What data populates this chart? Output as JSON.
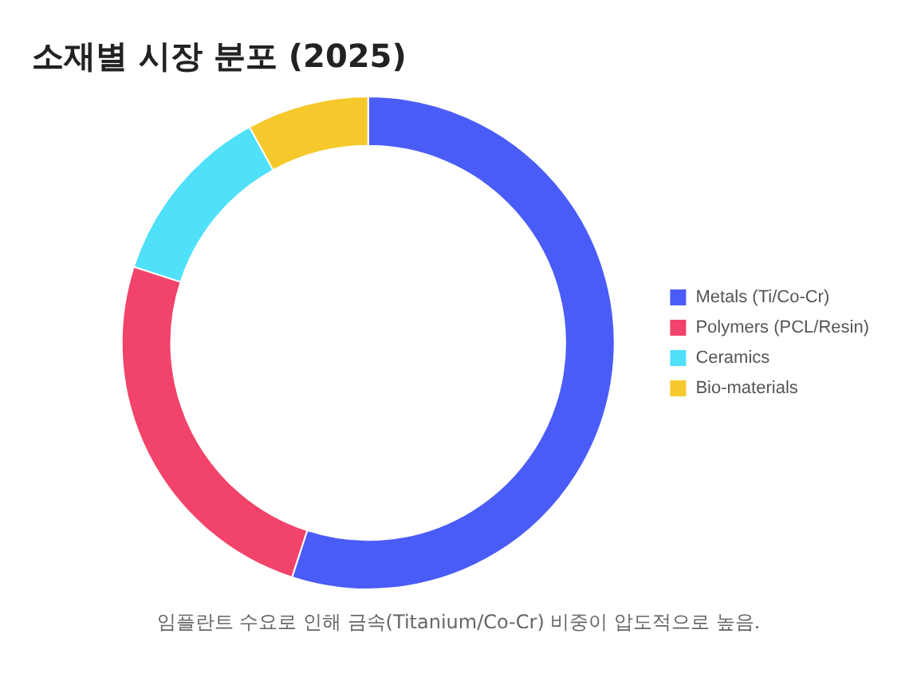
{
  "chart_data": {
    "type": "donut",
    "title": "소재별 시장 분포 (2025)",
    "categories": [
      "Metals (Ti/Co-Cr)",
      "Polymers (PCL/Resin)",
      "Ceramics",
      "Bio-materials"
    ],
    "values": [
      55,
      25,
      12,
      8
    ],
    "colors": [
      "#4a5cf8",
      "#f2436b",
      "#4fe0fa",
      "#f5c92b"
    ],
    "legend": "right",
    "annotations": [
      "임플란트 수요로 인해 금속(Titanium/Co-Cr) 비중이 압도적으로 높음."
    ]
  }
}
